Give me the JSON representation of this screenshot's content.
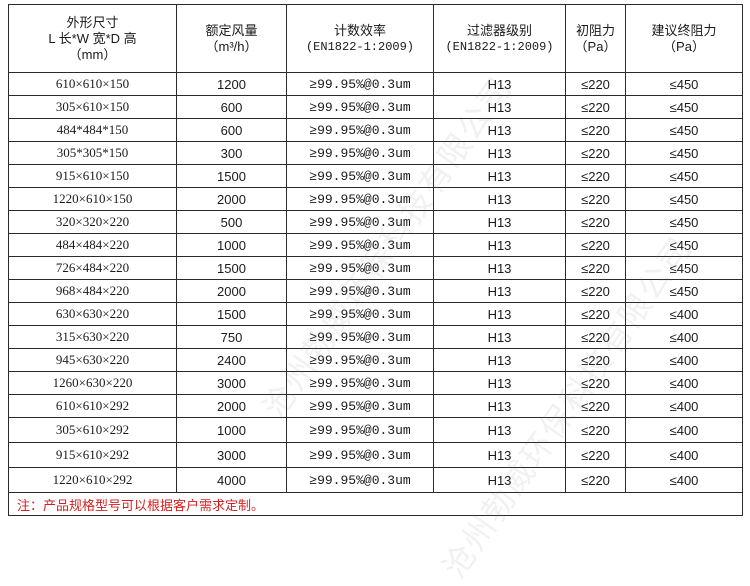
{
  "headers": [
    {
      "lines": [
        "外形尺寸",
        "L 长*W 宽*D 高",
        "（mm）"
      ]
    },
    {
      "lines": [
        "额定风量",
        "（m³/h）"
      ]
    },
    {
      "lines": [
        "计数效率",
        "(EN1822-1:2009)"
      ]
    },
    {
      "lines": [
        "过滤器级别",
        "(EN1822-1:2009)"
      ]
    },
    {
      "lines": [
        "初阻力",
        "（Pa）"
      ]
    },
    {
      "lines": [
        "建议终阻力",
        "（Pa）"
      ]
    }
  ],
  "rows": [
    [
      "610×610×150",
      "1200",
      "≥99.95%@0.3um",
      "H13",
      "≤220",
      "≤450"
    ],
    [
      "305×610×150",
      "600",
      "≥99.95%@0.3um",
      "H13",
      "≤220",
      "≤450"
    ],
    [
      "484*484*150",
      "600",
      "≥99.95%@0.3um",
      "H13",
      "≤220",
      "≤450"
    ],
    [
      "305*305*150",
      "300",
      "≥99.95%@0.3um",
      "H13",
      "≤220",
      "≤450"
    ],
    [
      "915×610×150",
      "1500",
      "≥99.95%@0.3um",
      "H13",
      "≤220",
      "≤450"
    ],
    [
      "1220×610×150",
      "2000",
      "≥99.95%@0.3um",
      "H13",
      "≤220",
      "≤450"
    ],
    [
      "320×320×220",
      "500",
      "≥99.95%@0.3um",
      "H13",
      "≤220",
      "≤450"
    ],
    [
      "484×484×220",
      "1000",
      "≥99.95%@0.3um",
      "H13",
      "≤220",
      "≤450"
    ],
    [
      "726×484×220",
      "1500",
      "≥99.95%@0.3um",
      "H13",
      "≤220",
      "≤450"
    ],
    [
      "968×484×220",
      "2000",
      "≥99.95%@0.3um",
      "H13",
      "≤220",
      "≤450"
    ],
    [
      "630×630×220",
      "1500",
      "≥99.95%@0.3um",
      "H13",
      "≤220",
      "≤400"
    ],
    [
      "315×630×220",
      "750",
      "≥99.95%@0.3um",
      "H13",
      "≤220",
      "≤400"
    ],
    [
      "945×630×220",
      "2400",
      "≥99.95%@0.3um",
      "H13",
      "≤220",
      "≤400"
    ],
    [
      "1260×630×220",
      "3000",
      "≥99.95%@0.3um",
      "H13",
      "≤220",
      "≤400"
    ],
    [
      "610×610×292",
      "2000",
      "≥99.95%@0.3um",
      "H13",
      "≤220",
      "≤400"
    ],
    [
      "305×610×292",
      "1000",
      "≥99.95%@0.3um",
      "H13",
      "≤220",
      "≤400"
    ],
    [
      "915×610×292",
      "3000",
      "≥99.95%@0.3um",
      "H13",
      "≤220",
      "≤400"
    ],
    [
      "1220×610×292",
      "4000",
      "≥99.95%@0.3um",
      "H13",
      "≤220",
      "≤400"
    ]
  ],
  "note": "注：产品规格型号可以根据客户需求定制。",
  "watermark": "沧州勃威环保科技有限公司",
  "colors": {
    "note": "#d62020",
    "border": "#2a2a2a",
    "text": "#1a1a1a"
  }
}
